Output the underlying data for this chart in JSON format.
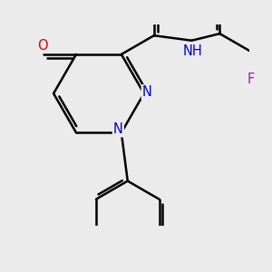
{
  "bg_color": "#ebebeb",
  "bond_color": "#000000",
  "bond_width": 1.8,
  "atom_colors": {
    "N": "#0000cc",
    "O": "#dd0000",
    "F": "#cc00cc",
    "H": "#444444"
  },
  "font_size": 10.5
}
